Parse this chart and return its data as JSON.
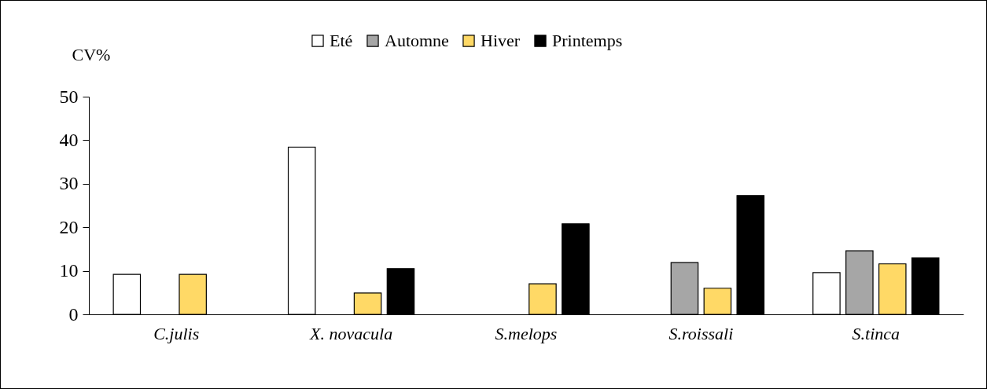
{
  "chart_data": {
    "type": "bar",
    "ylabel": "CV%",
    "categories": [
      "C.julis",
      "X. novacula",
      "S.melops",
      "S.roissali",
      "S.tinca"
    ],
    "series": [
      {
        "name": "Eté",
        "color": "#ffffff",
        "values": [
          9.2,
          38.4,
          null,
          null,
          9.6
        ]
      },
      {
        "name": "Automne",
        "color": "#a6a6a6",
        "values": [
          null,
          null,
          null,
          11.9,
          14.6
        ]
      },
      {
        "name": "Hiver",
        "color": "#ffd966",
        "values": [
          9.2,
          4.9,
          7.0,
          6.0,
          11.6
        ]
      },
      {
        "name": "Printemps",
        "color": "#000000",
        "values": [
          null,
          10.5,
          20.8,
          27.3,
          13.0
        ]
      }
    ],
    "ylim": [
      0,
      50
    ],
    "yticks": [
      0,
      10,
      20,
      30,
      40,
      50
    ],
    "grid": false,
    "legend": "top"
  }
}
